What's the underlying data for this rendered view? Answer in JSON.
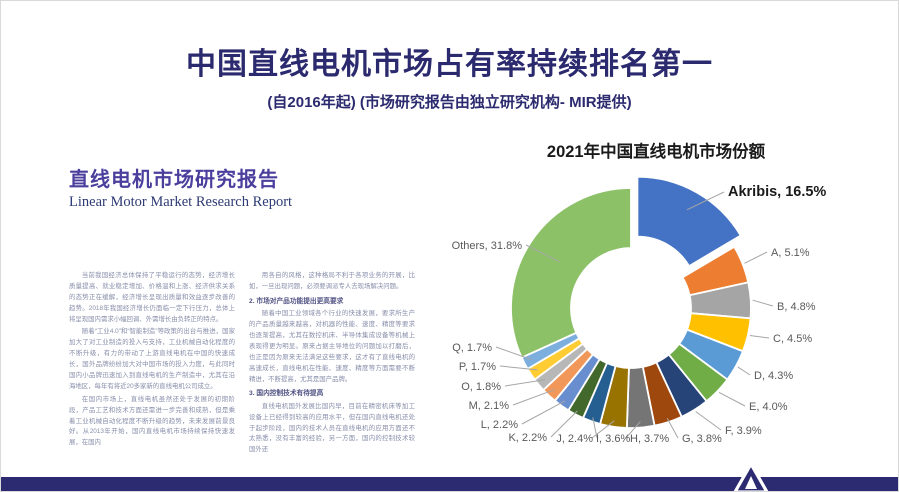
{
  "slide": {
    "title": "中国直线电机市场占有率持续排名第一",
    "subtitle": "(自2016年起) (市场研究报告由独立研究机构- MIR提供)"
  },
  "document": {
    "title_zh": "直线电机市场研究报告",
    "title_en": "Linear Motor Market Research Report",
    "left_column": [
      {
        "style": "body",
        "text": "当前我国经济总体保持了平稳运行的态势，经济增长质量提高、就业稳定增加、价格温和上涨、经济供求关系的态势正在缓解，经济增长呈现出质量和效益逐步改善的趋势。2018年我国经济增长仍面临一定下行压力，总体上将呈现国内需求小幅回调、外需增长由负转正的特点。"
      },
      {
        "style": "body",
        "text": "随着“工业4.0”和“智能制造”等政策的出台与推进，国家加大了对工业制造的投入与支持，工业机械自动化程度的不断升级，有力的带动了上游直线电机在中国的快速成长，国外品牌纷纷加大对中国市场的投入力度，与此同时国内小品牌迅速加入到直线电机的生产制造中，尤其在沿海地区，每年有将近20多家新的直线电机公司成立。"
      },
      {
        "style": "body",
        "text": "在国内市场上，直线电机虽然还处于发展的初期阶段，产品工艺和技术方面还需进一步完善和成熟，但是乘着工业机械自动化程度不断升级的趋势，未来发展前景良好。从2013年开始，国内直线电机市场持续保持快速发展，在国内"
      }
    ],
    "right_column": [
      {
        "style": "body",
        "text": "用各自的风格，这种格局不利于各项业务的开展，比如，一旦出现问题，必须要调派专人去现场解决问题。"
      },
      {
        "style": "heading",
        "text": "2. 市场对产品功能提出更高要求"
      },
      {
        "style": "body",
        "text": "随着中国工业领域各个行业的快速发展，要求所生产的产品质量越来越高，对机器的性能、速度、精度等要求也逐渐提高，尤其在数控机床、半导体集成设备等机械上表现得更为明显。原来占据主导地位的问题加以打磨后，也正是因为原来无法满足这些要求，这才有了直线电机的高速成长，直线电机在性能、速度、精度等方面需要不断精进，不断提高，尤其是国产品牌。"
      },
      {
        "style": "heading",
        "text": "3. 国内控制技术有待提高"
      },
      {
        "style": "body",
        "text": "直线电机国外发展比国内早，目前在精密机床等加工设备上已经得到较高的应用水平，但在国内直线电机还处于起步阶段，国内的技术人员在直线电机的应用方面还不太熟悉，没有丰富的经验，另一方面，国内的控制技术较国外还"
      }
    ]
  },
  "chart_data": {
    "type": "pie",
    "donut": true,
    "title": "2021年中国直线电机市场份额",
    "label_format": "{name}, {value}%",
    "exploded_slice": "Akribis",
    "legend_position": "none",
    "leader_line_color": "#a6a6a6",
    "label_color": "#595959",
    "series": [
      {
        "name": "Akribis",
        "value": 16.5,
        "color": "#4472C4"
      },
      {
        "name": "A",
        "value": 5.1,
        "color": "#ED7D31"
      },
      {
        "name": "B",
        "value": 4.8,
        "color": "#A5A5A5"
      },
      {
        "name": "C",
        "value": 4.5,
        "color": "#FFC000"
      },
      {
        "name": "D",
        "value": 4.3,
        "color": "#5B9BD5"
      },
      {
        "name": "E",
        "value": 4.0,
        "color": "#70AD47"
      },
      {
        "name": "F",
        "value": 3.9,
        "color": "#264478"
      },
      {
        "name": "G",
        "value": 3.8,
        "color": "#9E480E"
      },
      {
        "name": "H",
        "value": 3.7,
        "color": "#757575"
      },
      {
        "name": "I",
        "value": 3.6,
        "color": "#997300"
      },
      {
        "name": "J",
        "value": 2.4,
        "color": "#255E91"
      },
      {
        "name": "K",
        "value": 2.2,
        "color": "#43682B"
      },
      {
        "name": "L",
        "value": 2.2,
        "color": "#698ED0"
      },
      {
        "name": "M",
        "value": 2.1,
        "color": "#F1975A"
      },
      {
        "name": "O",
        "value": 1.8,
        "color": "#B7B7B7"
      },
      {
        "name": "P",
        "value": 1.7,
        "color": "#FFCD33"
      },
      {
        "name": "Q",
        "value": 1.7,
        "color": "#7CAFDD"
      },
      {
        "name": "Others",
        "value": 31.8,
        "color": "#8CC168"
      }
    ]
  },
  "footer": {
    "bar_color": "#2c2a70",
    "logo": "akribis-triangle-logo"
  }
}
